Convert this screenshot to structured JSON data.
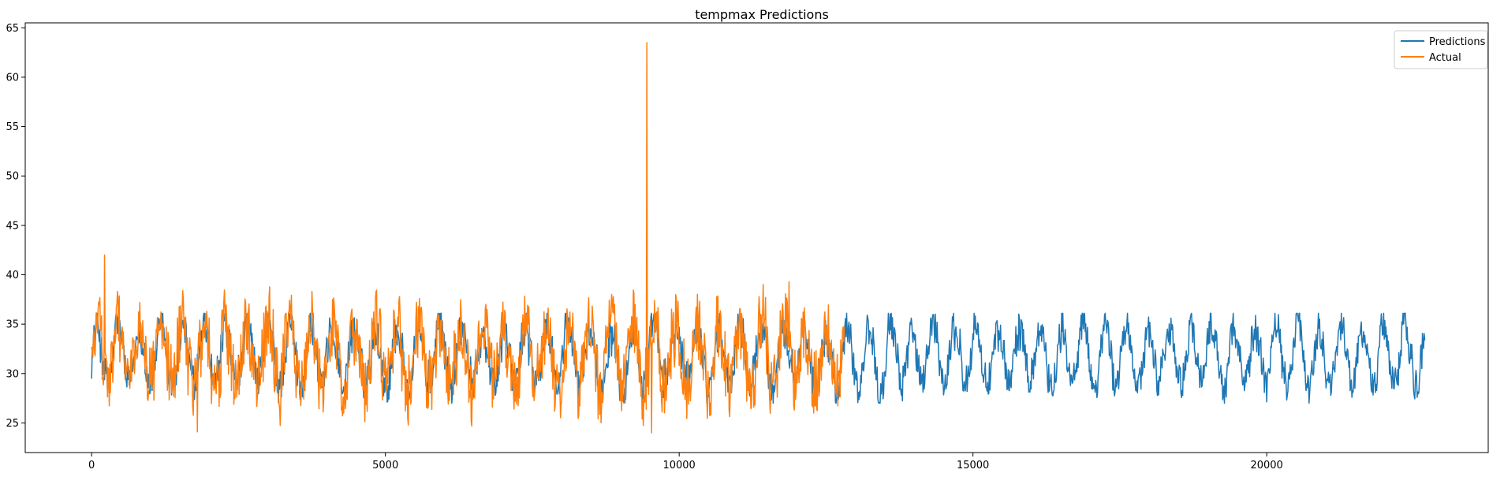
{
  "chart_data": {
    "type": "line",
    "title": "tempmax Predictions",
    "xlabel": "",
    "ylabel": "",
    "xlim": [
      -1130,
      23770
    ],
    "ylim": [
      22,
      65.5
    ],
    "x_ticks": [
      0,
      5000,
      10000,
      15000,
      20000
    ],
    "x_tick_labels": [
      "0",
      "5000",
      "10000",
      "15000",
      "20000"
    ],
    "y_ticks": [
      25,
      30,
      35,
      40,
      45,
      50,
      55,
      60,
      65
    ],
    "y_tick_labels": [
      "25",
      "30",
      "35",
      "40",
      "45",
      "50",
      "55",
      "60",
      "65"
    ],
    "grid": false,
    "legend_position": "upper right",
    "series": [
      {
        "name": "Predictions",
        "color": "#1f77b4",
        "x_range": [
          0,
          22700
        ],
        "n_points": 22700,
        "seasonal_period": 365,
        "base": 31.8,
        "amplitude": 2.9,
        "noise_range": [
          27,
          37.3
        ]
      },
      {
        "name": "Actual",
        "color": "#ff7f0e",
        "x_range": [
          0,
          12820
        ],
        "n_points": 12820,
        "seasonal_period": 365,
        "base": 31.8,
        "amplitude": 3.2,
        "noise_range": [
          24,
          42
        ],
        "peaks": [
          {
            "x": 220,
            "y": 42.0
          },
          {
            "x": 9450,
            "y": 63.5
          },
          {
            "x": 11870,
            "y": 39.3
          },
          {
            "x": 1800,
            "y": 24.1
          },
          {
            "x": 9530,
            "y": 24.0
          }
        ]
      }
    ]
  }
}
